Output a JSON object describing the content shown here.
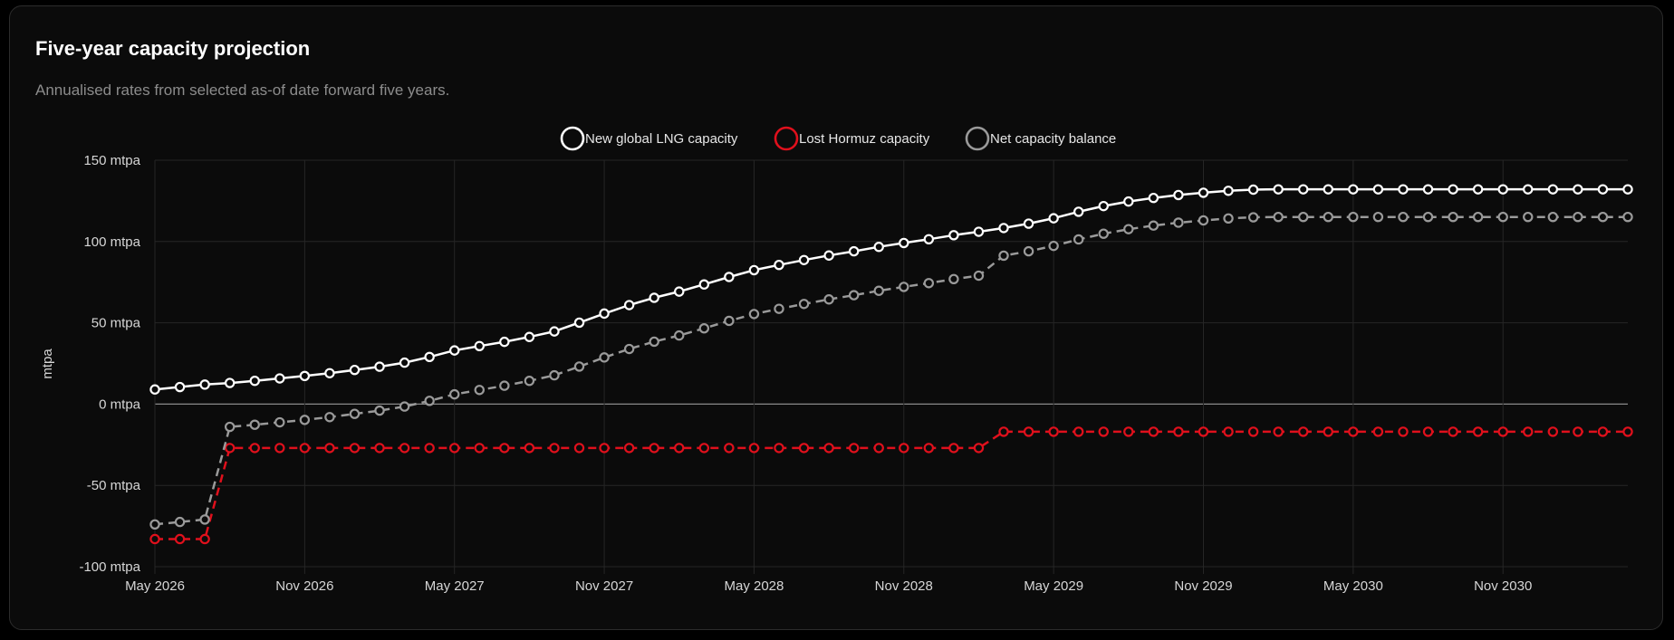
{
  "header": {
    "title": "Five-year capacity projection",
    "subtitle": "Annualised rates from selected as-of date forward five years."
  },
  "colors": {
    "background": "#0b0b0b",
    "grid": "#262626",
    "zero_line": "#8a8a8a",
    "tick_text": "#d6d6d6",
    "new_lng": "#ffffff",
    "lost_hormuz": "#e0101c",
    "net_balance": "#9a9a9a"
  },
  "chart_data": {
    "type": "line",
    "title": "Five-year capacity projection",
    "xlabel": "",
    "ylabel": "mtpa",
    "ylim": [
      -100,
      150
    ],
    "yticks": [
      150,
      100,
      50,
      0,
      -50,
      -100
    ],
    "ytick_labels": [
      "150 mtpa",
      "100 mtpa",
      "50 mtpa",
      "0 mtpa",
      "-50 mtpa",
      "-100 mtpa"
    ],
    "xtick_labels": [
      "May 2026",
      "Nov 2026",
      "May 2027",
      "Nov 2027",
      "May 2028",
      "Nov 2028",
      "May 2029",
      "Nov 2029",
      "May 2030",
      "Nov 2030"
    ],
    "xtick_indices": [
      0,
      6,
      12,
      18,
      24,
      30,
      36,
      42,
      48,
      54
    ],
    "x_count": 60,
    "legend_position": "top-center",
    "series": [
      {
        "name": "New global LNG capacity",
        "style": "solid",
        "values": [
          9,
          10.5,
          12,
          13,
          14.3,
          15.8,
          17.3,
          19,
          21,
          23,
          25.5,
          29,
          33,
          35.7,
          38.3,
          41.3,
          44.7,
          50.1,
          55.7,
          60.9,
          65.4,
          69.2,
          73.6,
          78.2,
          82.4,
          85.6,
          88.6,
          91.4,
          94,
          96.7,
          99.1,
          101.4,
          103.9,
          106,
          108.3,
          111,
          114.3,
          118.3,
          121.8,
          124.6,
          126.8,
          128.6,
          130,
          131.2,
          131.9,
          132.1,
          132.1,
          132.1,
          132.1,
          132.1,
          132.1,
          132.1,
          132.1,
          132.1,
          132.1,
          132.1,
          132.1,
          132.1,
          132.1,
          132.1
        ]
      },
      {
        "name": "Lost Hormuz capacity",
        "style": "dashed",
        "values": [
          -83,
          -83,
          -83,
          -27,
          -27,
          -27,
          -27,
          -27,
          -27,
          -27,
          -27,
          -27,
          -27,
          -27,
          -27,
          -27,
          -27,
          -27,
          -27,
          -27,
          -27,
          -27,
          -27,
          -27,
          -27,
          -27,
          -27,
          -27,
          -27,
          -27,
          -27,
          -27,
          -27,
          -27,
          -17,
          -17,
          -17,
          -17,
          -17,
          -17,
          -17,
          -17,
          -17,
          -17,
          -17,
          -17,
          -17,
          -17,
          -17,
          -17,
          -17,
          -17,
          -17,
          -17,
          -17,
          -17,
          -17,
          -17,
          -17,
          -17
        ]
      },
      {
        "name": "Net capacity balance",
        "style": "dashed",
        "values": [
          -74,
          -72.5,
          -71,
          -14,
          -12.7,
          -11.2,
          -9.7,
          -8,
          -6,
          -4,
          -1.5,
          2,
          6,
          8.7,
          11.3,
          14.3,
          17.7,
          23.1,
          28.7,
          33.9,
          38.4,
          42.2,
          46.6,
          51.2,
          55.4,
          58.6,
          61.6,
          64.4,
          67,
          69.7,
          72.1,
          74.4,
          76.9,
          79,
          91.3,
          94,
          97.3,
          101.3,
          104.8,
          107.6,
          109.8,
          111.6,
          113,
          114.2,
          114.9,
          115.1,
          115.1,
          115.1,
          115.1,
          115.1,
          115.1,
          115.1,
          115.1,
          115.1,
          115.1,
          115.1,
          115.1,
          115.1,
          115.1,
          115.1
        ]
      }
    ]
  }
}
